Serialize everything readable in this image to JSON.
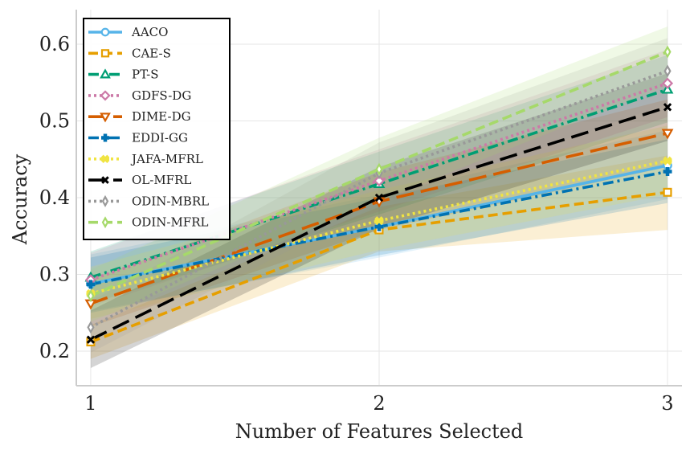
{
  "chart_data": {
    "type": "line",
    "title": "",
    "xlabel": "Number of Features Selected",
    "ylabel": "Accuracy",
    "x": [
      1,
      2,
      3
    ],
    "x_tick_labels": [
      "1",
      "2",
      "3"
    ],
    "y_ticks": [
      0.2,
      0.3,
      0.4,
      0.5,
      0.6
    ],
    "y_tick_labels": [
      "0.2",
      "0.3",
      "0.4",
      "0.5",
      "0.6"
    ],
    "xlim": [
      0.95,
      3.05
    ],
    "ylim": [
      0.155,
      0.645
    ],
    "grid": true,
    "legend_position": "top-left",
    "series": [
      {
        "name": "AACO",
        "values": [
          0.288,
          0.362,
          0.442
        ],
        "lower": [
          0.252,
          0.322,
          0.398
        ],
        "upper": [
          0.326,
          0.404,
          0.488
        ],
        "color": "#56b4e9",
        "marker": "circle",
        "dash": "solid"
      },
      {
        "name": "CAE-S",
        "values": [
          0.212,
          0.358,
          0.407
        ],
        "lower": [
          0.19,
          0.33,
          0.358
        ],
        "upper": [
          0.234,
          0.388,
          0.455
        ],
        "color": "#e69f00",
        "marker": "square",
        "dash": "dashed"
      },
      {
        "name": "PT-S",
        "values": [
          0.296,
          0.418,
          0.541
        ],
        "lower": [
          0.262,
          0.378,
          0.498
        ],
        "upper": [
          0.33,
          0.46,
          0.586
        ],
        "color": "#009e73",
        "marker": "triangle-up",
        "dash": "dashdot"
      },
      {
        "name": "GDFS-DG",
        "values": [
          0.293,
          0.422,
          0.549
        ],
        "lower": [
          0.258,
          0.382,
          0.505
        ],
        "upper": [
          0.328,
          0.463,
          0.593
        ],
        "color": "#cc79a7",
        "marker": "diamond",
        "dash": "dotted"
      },
      {
        "name": "DIME-DG",
        "values": [
          0.262,
          0.395,
          0.484
        ],
        "lower": [
          0.232,
          0.358,
          0.44
        ],
        "upper": [
          0.293,
          0.433,
          0.528
        ],
        "color": "#d55e00",
        "marker": "triangle-down",
        "dash": "longdash"
      },
      {
        "name": "EDDI-GG",
        "values": [
          0.287,
          0.362,
          0.434
        ],
        "lower": [
          0.25,
          0.325,
          0.393
        ],
        "upper": [
          0.322,
          0.4,
          0.476
        ],
        "color": "#0072b2",
        "marker": "plus",
        "dash": "dashdot"
      },
      {
        "name": "JAFA-MFRL",
        "values": [
          0.275,
          0.37,
          0.448
        ],
        "lower": [
          0.242,
          0.332,
          0.404
        ],
        "upper": [
          0.31,
          0.41,
          0.494
        ],
        "color": "#f0e442",
        "marker": "x-filled",
        "dash": "dotted"
      },
      {
        "name": "OL-MFRL",
        "values": [
          0.215,
          0.4,
          0.518
        ],
        "lower": [
          0.178,
          0.36,
          0.474
        ],
        "upper": [
          0.253,
          0.44,
          0.562
        ],
        "color": "#000000",
        "marker": "x",
        "dash": "longdash"
      },
      {
        "name": "ODIN-MBRL",
        "values": [
          0.231,
          0.432,
          0.565
        ],
        "lower": [
          0.198,
          0.392,
          0.522
        ],
        "upper": [
          0.265,
          0.472,
          0.608
        ],
        "color": "#999999",
        "marker": "thin-diamond",
        "dash": "dotted"
      },
      {
        "name": "ODIN-MFRL",
        "values": [
          0.272,
          0.437,
          0.59
        ],
        "lower": [
          0.238,
          0.396,
          0.546
        ],
        "upper": [
          0.306,
          0.478,
          0.623
        ],
        "color": "#a6d96a",
        "marker": "thin-diamond",
        "dash": "dashed"
      }
    ]
  }
}
